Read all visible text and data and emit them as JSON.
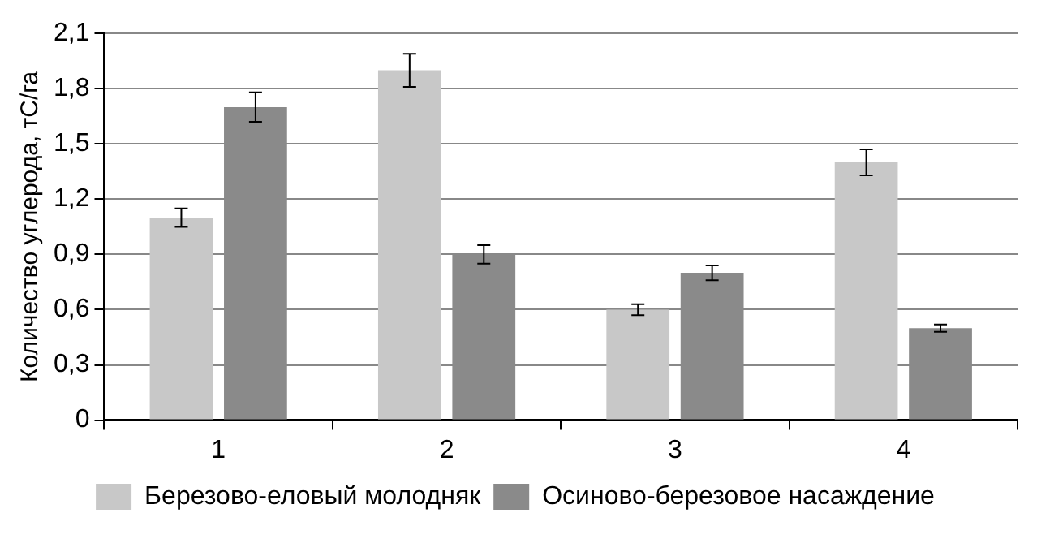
{
  "chart_data": {
    "type": "bar",
    "ylabel": "Количество углерода, тС/га",
    "categories": [
      "1",
      "2",
      "3",
      "4"
    ],
    "series": [
      {
        "name": "Березово-еловый молодняк",
        "color": "#c8c8c8",
        "values": [
          1.1,
          1.9,
          0.6,
          1.4
        ],
        "errors": [
          0.05,
          0.09,
          0.03,
          0.07
        ]
      },
      {
        "name": "Осиново-березовое насаждение",
        "color": "#8a8a8a",
        "values": [
          1.7,
          0.9,
          0.8,
          0.5
        ],
        "errors": [
          0.08,
          0.05,
          0.04,
          0.02
        ]
      }
    ],
    "ylim": [
      0,
      2.1
    ],
    "yticks": [
      0,
      {
        "value": 0.3,
        "label": "0,3"
      },
      {
        "value": 0.6,
        "label": "0,6"
      },
      {
        "value": 0.9,
        "label": "0,9"
      },
      {
        "value": 1.2,
        "label": "1,2"
      },
      {
        "value": 1.5,
        "label": "1,5"
      },
      {
        "value": 1.8,
        "label": "1,8"
      },
      {
        "value": 2.1,
        "label": "2,1"
      }
    ],
    "grid": "y",
    "legend": "bottom"
  }
}
